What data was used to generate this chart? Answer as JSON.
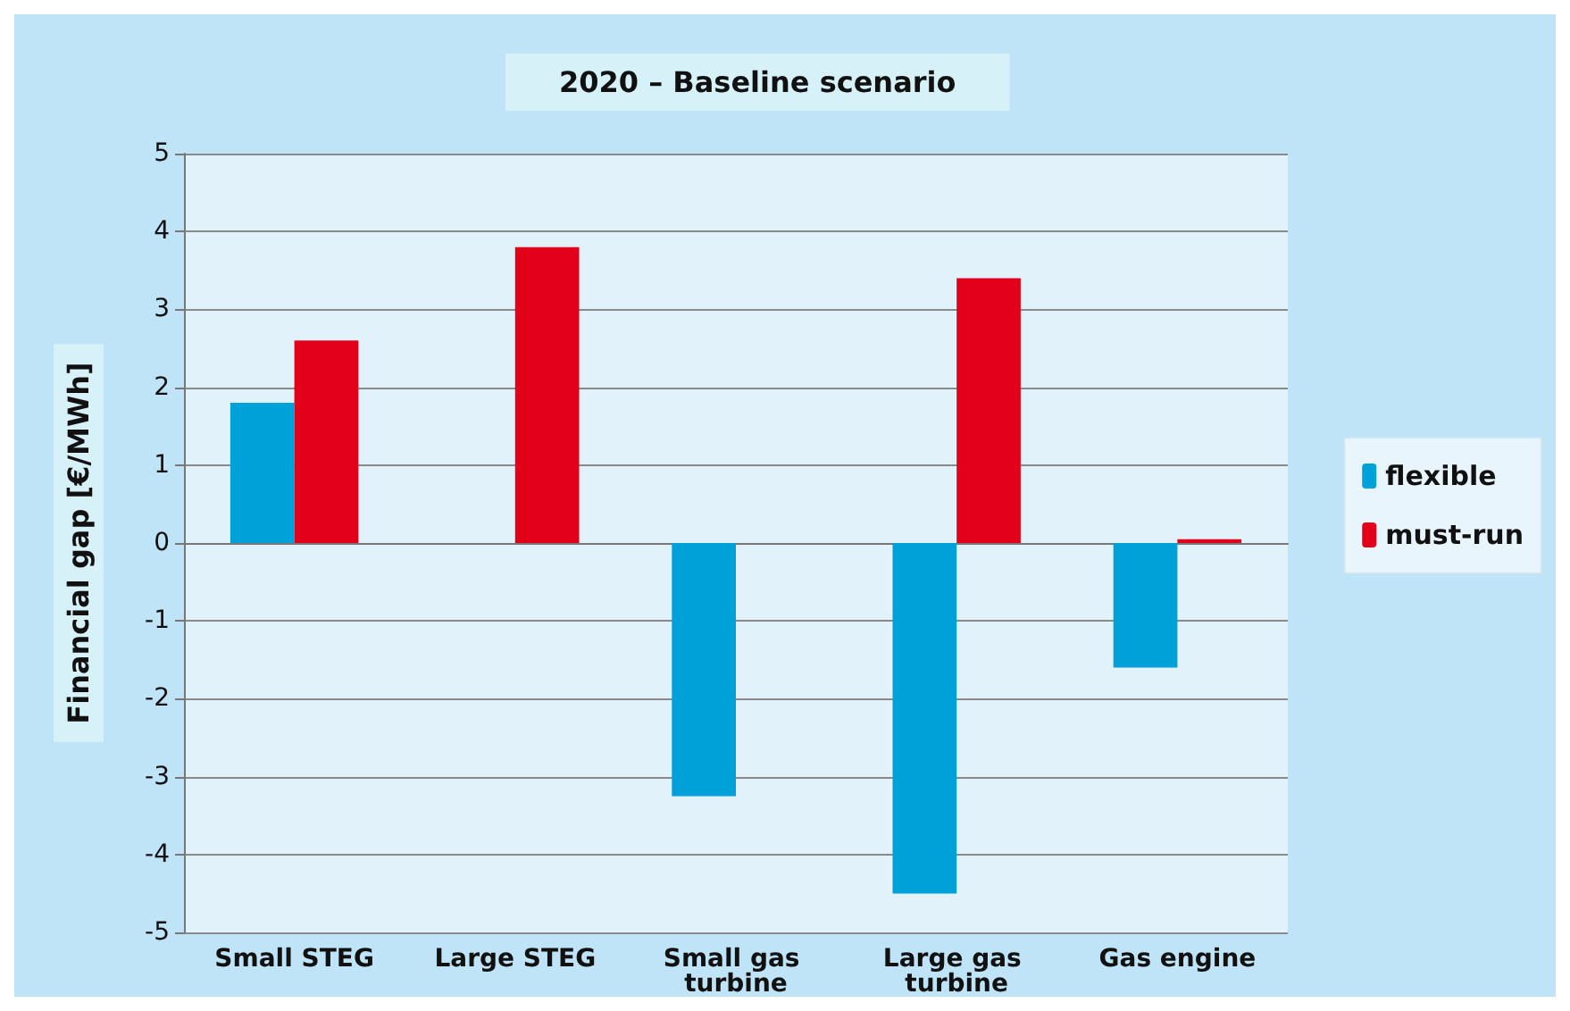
{
  "chart_data": {
    "type": "bar",
    "title": "2020 – Baseline scenario",
    "ylabel": "Financial gap [€/MWh]",
    "categories": [
      "Small STEG",
      "Large STEG",
      "Small gas turbine",
      "Large gas turbine",
      "Gas engine"
    ],
    "series": [
      {
        "name": "flexible",
        "color": "#00a0d8",
        "values": [
          1.8,
          0,
          -3.25,
          -4.5,
          -1.6
        ]
      },
      {
        "name": "must-run",
        "color": "#e2001a",
        "values": [
          2.6,
          3.8,
          0,
          3.4,
          0.05
        ]
      }
    ],
    "ylim": [
      -5,
      5
    ],
    "yticks": [
      -5,
      -4,
      -3,
      -2,
      -1,
      0,
      1,
      2,
      3,
      4,
      5
    ],
    "grid": "y",
    "legend": "right"
  }
}
